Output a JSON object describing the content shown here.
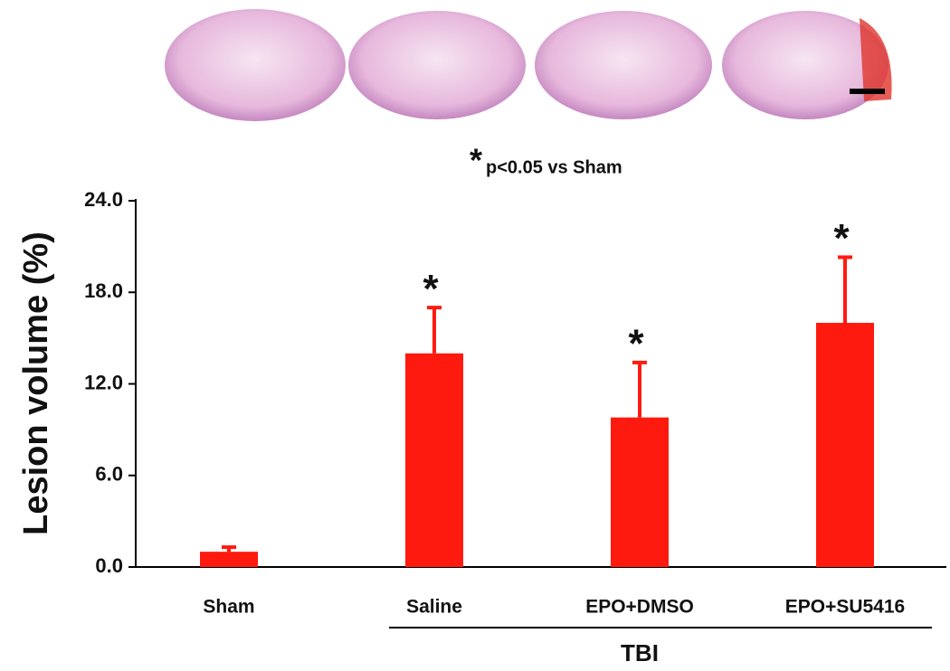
{
  "chart_data": {
    "type": "bar",
    "title": "",
    "y_label": "Lesion volume (%)",
    "categories": [
      "Sham",
      "Saline",
      "EPO+DMSO",
      "EPO+SU5416"
    ],
    "values": [
      1.0,
      14.0,
      9.8,
      16.0
    ],
    "errors": [
      0.3,
      3.0,
      3.6,
      4.3
    ],
    "significance": [
      null,
      "*",
      "*",
      "*"
    ],
    "color": "#ff1a0f",
    "group": {
      "label": "TBI",
      "from": 1,
      "to": 3
    },
    "significance_note": {
      "marker": "*",
      "text": "p<0.05 vs Sham"
    },
    "ylim": [
      0,
      24
    ],
    "yticks": [
      {
        "value": 0,
        "label": "0.0"
      },
      {
        "value": 6,
        "label": "6.0"
      },
      {
        "value": 12,
        "label": "12.0"
      },
      {
        "value": 18,
        "label": "18.0"
      },
      {
        "value": 24,
        "label": "24.0"
      }
    ]
  }
}
